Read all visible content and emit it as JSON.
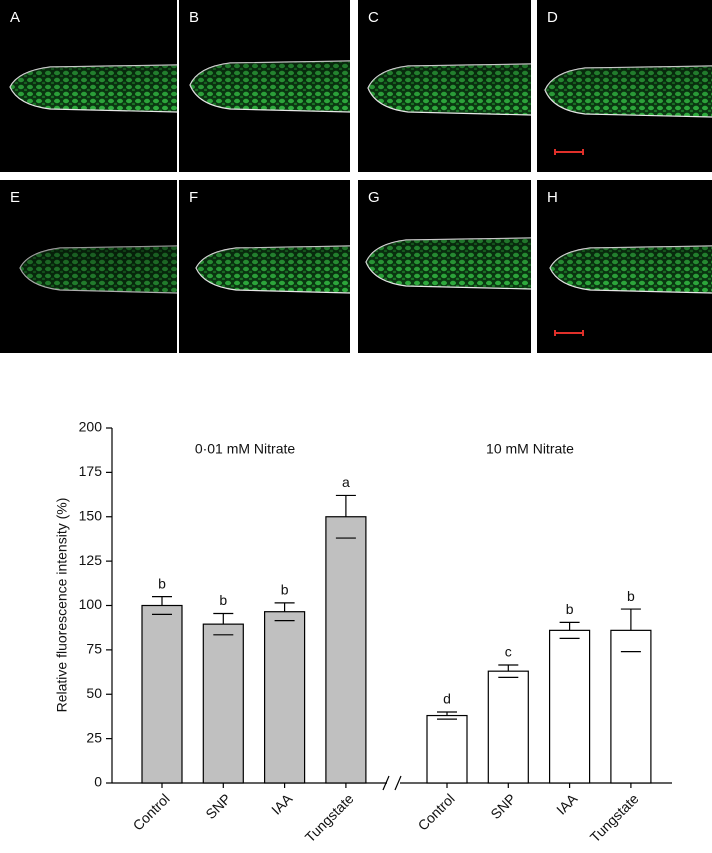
{
  "panels": [
    "A",
    "B",
    "C",
    "D",
    "E",
    "F",
    "G",
    "H"
  ],
  "chart_data": {
    "type": "bar",
    "y_label": "Relative fluorescence intensity (%)",
    "ylim": [
      0,
      200
    ],
    "yticks": [
      0,
      25,
      50,
      75,
      100,
      125,
      150,
      175,
      200
    ],
    "groups": [
      {
        "name": "0·01 mM Nitrate",
        "color": "#c0c0c0",
        "categories": [
          "Control",
          "SNP",
          "IAA",
          "Tungstate"
        ],
        "values": [
          100,
          89.5,
          96.5,
          150
        ],
        "errors": [
          5,
          6,
          5,
          12
        ],
        "letters": [
          "b",
          "b",
          "b",
          "a"
        ]
      },
      {
        "name": "10 mM Nitrate",
        "color": "#ffffff",
        "categories": [
          "Control",
          "SNP",
          "IAA",
          "Tungstate"
        ],
        "values": [
          38,
          63,
          86,
          86
        ],
        "errors": [
          2,
          3.5,
          4.5,
          12
        ],
        "letters": [
          "d",
          "c",
          "b",
          "b"
        ]
      }
    ]
  }
}
